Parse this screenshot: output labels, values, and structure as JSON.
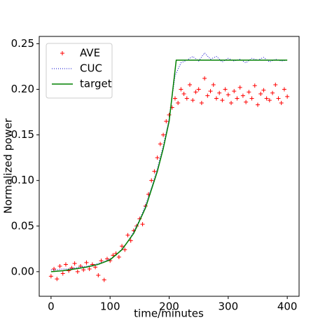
{
  "chart_data": {
    "type": "mixed",
    "xlabel": "time/minutes",
    "ylabel": "Normalized power",
    "xlim": [
      -20,
      420
    ],
    "ylim": [
      -0.027,
      0.258
    ],
    "xticks": [
      0,
      100,
      200,
      300,
      400
    ],
    "yticks": [
      {
        "value": 0,
        "label": "0.00"
      },
      {
        "value": 0.05,
        "label": "0.05"
      },
      {
        "value": 0.1,
        "label": "0.10"
      },
      {
        "value": 0.15,
        "label": "0.15"
      },
      {
        "value": 0.2,
        "label": "0.20"
      },
      {
        "value": 0.25,
        "label": "0.25"
      }
    ],
    "legend": "upper left",
    "series": [
      {
        "name": "AVE",
        "type": "scatter",
        "color": "#ff0000",
        "x": [
          0,
          5,
          10,
          15,
          20,
          25,
          30,
          35,
          40,
          45,
          50,
          55,
          60,
          65,
          70,
          75,
          80,
          85,
          90,
          95,
          100,
          105,
          110,
          115,
          120,
          125,
          130,
          135,
          140,
          145,
          150,
          155,
          160,
          165,
          170,
          175,
          180,
          185,
          190,
          195,
          200,
          205,
          210,
          215,
          220,
          225,
          230,
          235,
          240,
          245,
          250,
          255,
          260,
          265,
          270,
          275,
          280,
          285,
          290,
          295,
          300,
          305,
          310,
          315,
          320,
          325,
          330,
          335,
          340,
          345,
          350,
          355,
          360,
          365,
          370,
          375,
          380,
          385,
          390,
          395,
          400
        ],
        "values": [
          -0.005,
          0.003,
          -0.008,
          0.006,
          -0.002,
          0.008,
          0.001,
          0.004,
          0.009,
          0.0,
          0.006,
          0.002,
          0.01,
          0.003,
          0.008,
          0.005,
          -0.004,
          0.012,
          -0.009,
          0.014,
          0.012,
          0.018,
          0.02,
          0.016,
          0.028,
          0.024,
          0.04,
          0.034,
          0.045,
          0.05,
          0.058,
          0.052,
          0.072,
          0.085,
          0.1,
          0.11,
          0.125,
          0.14,
          0.15,
          0.165,
          0.172,
          0.18,
          0.19,
          0.185,
          0.2,
          0.195,
          0.19,
          0.205,
          0.188,
          0.197,
          0.2,
          0.185,
          0.212,
          0.193,
          0.198,
          0.205,
          0.19,
          0.196,
          0.188,
          0.2,
          0.194,
          0.185,
          0.198,
          0.19,
          0.202,
          0.193,
          0.186,
          0.197,
          0.19,
          0.204,
          0.183,
          0.195,
          0.199,
          0.19,
          0.188,
          0.196,
          0.205,
          0.19,
          0.185,
          0.2,
          0.192
        ]
      },
      {
        "name": "CUC",
        "type": "line",
        "style": "dotted",
        "color": "#0000cc",
        "x": [
          0,
          10,
          20,
          30,
          40,
          50,
          60,
          70,
          80,
          90,
          100,
          110,
          120,
          130,
          140,
          150,
          160,
          170,
          180,
          190,
          200,
          210,
          220,
          230,
          240,
          250,
          260,
          270,
          280,
          290,
          300,
          310,
          320,
          330,
          340,
          350,
          360,
          370,
          380,
          390,
          400
        ],
        "values": [
          0.002,
          0.002,
          0.003,
          0.003,
          0.004,
          0.005,
          0.006,
          0.007,
          0.009,
          0.011,
          0.014,
          0.018,
          0.025,
          0.033,
          0.044,
          0.057,
          0.073,
          0.092,
          0.113,
          0.138,
          0.168,
          0.215,
          0.229,
          0.232,
          0.236,
          0.231,
          0.24,
          0.233,
          0.236,
          0.23,
          0.234,
          0.231,
          0.233,
          0.229,
          0.234,
          0.232,
          0.235,
          0.23,
          0.233,
          0.231,
          0.232
        ]
      },
      {
        "name": "target",
        "type": "line",
        "style": "solid",
        "color": "#008000",
        "x": [
          0,
          20,
          40,
          60,
          80,
          100,
          120,
          140,
          160,
          180,
          190,
          200,
          212,
          400
        ],
        "values": [
          0.0,
          0.001,
          0.003,
          0.005,
          0.008,
          0.013,
          0.024,
          0.042,
          0.07,
          0.11,
          0.135,
          0.165,
          0.232,
          0.232
        ]
      }
    ]
  }
}
